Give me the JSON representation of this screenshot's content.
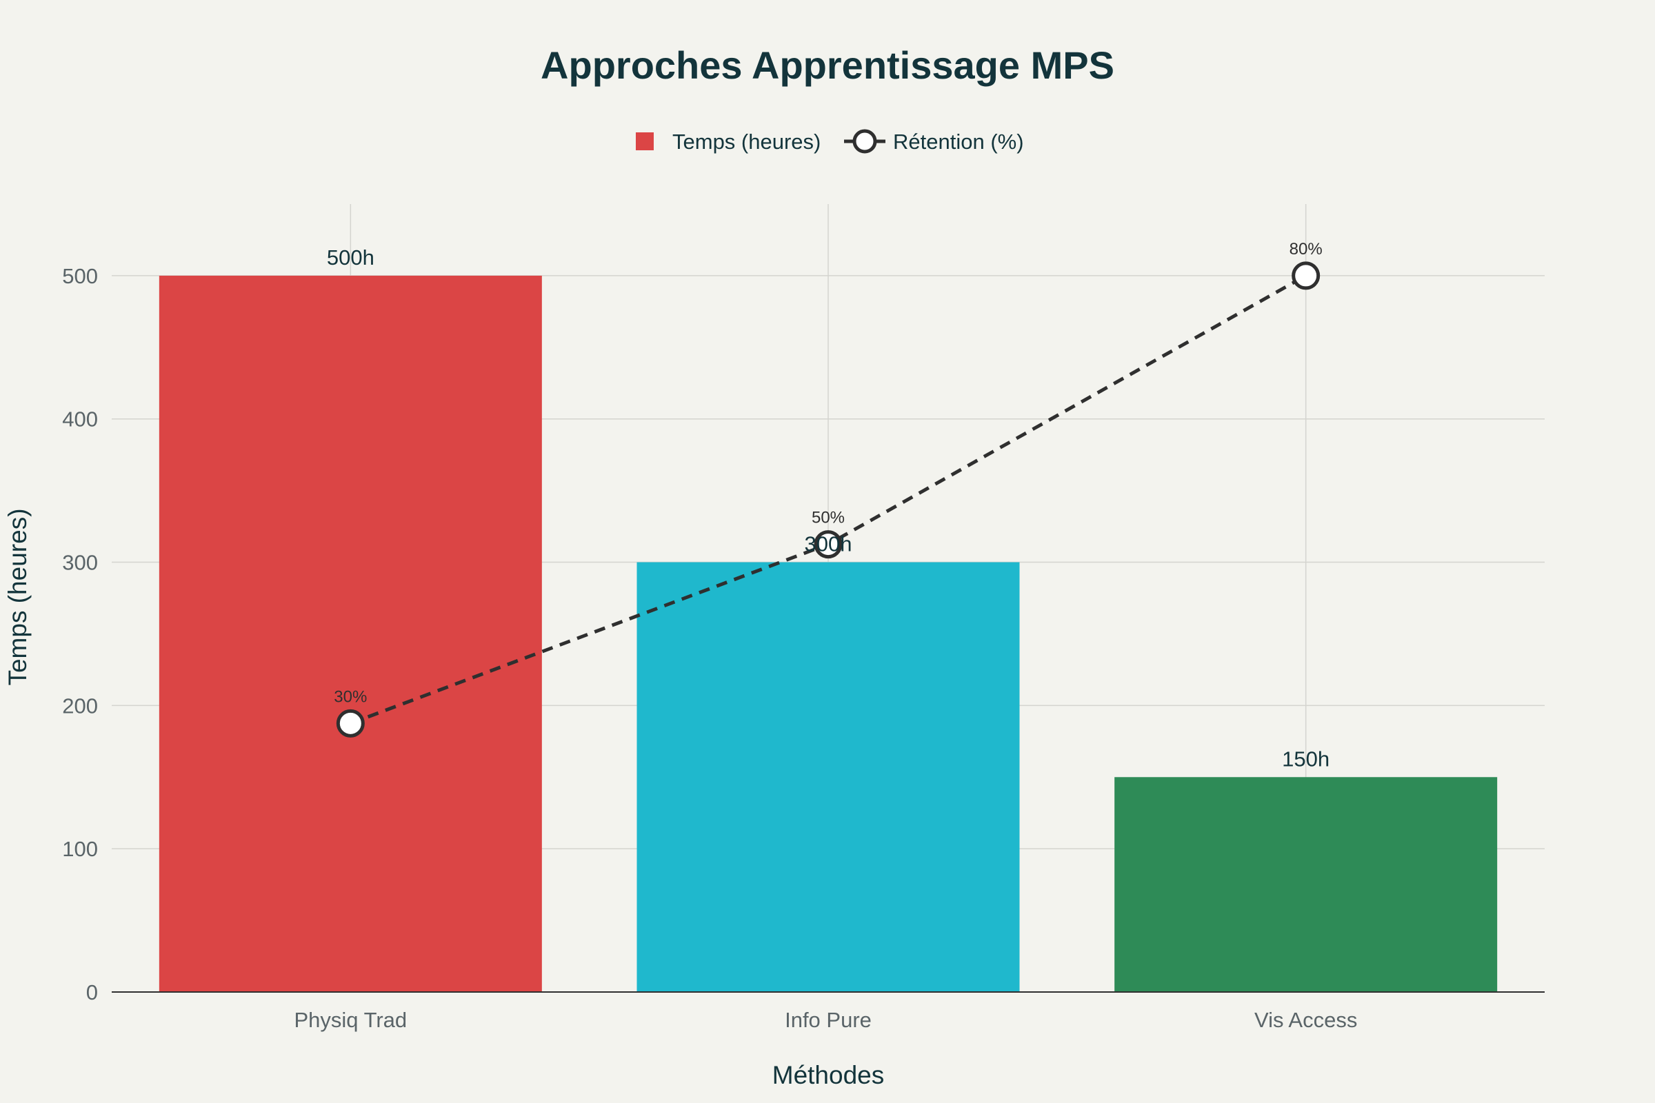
{
  "chart_data": {
    "type": "bar",
    "title": "Approches Apprentissage MPS",
    "xlabel": "Méthodes",
    "ylabel": "Temps (heures)",
    "categories": [
      "Physiq Trad",
      "Info Pure",
      "Vis Access"
    ],
    "ylim": [
      0,
      550
    ],
    "yticks": [
      0,
      100,
      200,
      300,
      400,
      500
    ],
    "grid": true,
    "legend_position": "top-center",
    "series": [
      {
        "name": "Temps (heures)",
        "type": "bar",
        "values": [
          500,
          300,
          150
        ],
        "labels": [
          "500h",
          "300h",
          "150h"
        ],
        "colors": [
          "#db4545",
          "#1fb8cd",
          "#2e8b57"
        ]
      },
      {
        "name": "Rétention (%)",
        "type": "line",
        "values": [
          30,
          50,
          80
        ],
        "labels": [
          "30%",
          "50%",
          "80%"
        ],
        "color": "#2f2f2f",
        "line_style": "dashed",
        "marker": "open-circle"
      }
    ]
  }
}
